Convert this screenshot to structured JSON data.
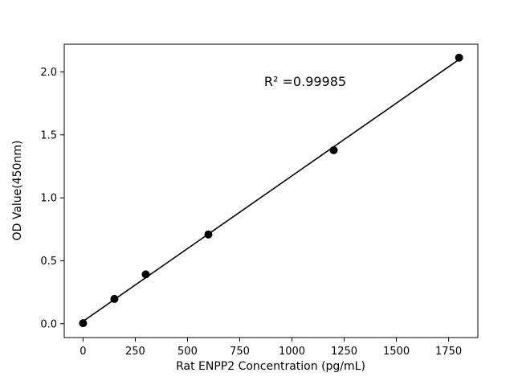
{
  "page": {
    "background_color": "#ffffff"
  },
  "chart_data": {
    "type": "scatter",
    "title": "",
    "xlabel": "Rat ENPP2 Concentration (pg/mL)",
    "ylabel": "OD Value(450nm)",
    "x": [
      0,
      150,
      300,
      600,
      1200,
      1800
    ],
    "y": [
      0.004,
      0.197,
      0.392,
      0.709,
      1.378,
      2.113
    ],
    "fit_line": {
      "type": "linear",
      "spans_full_data_range": true
    },
    "annotation": {
      "text": "R² =0.99985"
    },
    "xlim": [
      -90,
      1890
    ],
    "ylim": [
      -0.11,
      2.22
    ],
    "xticks": [
      0,
      250,
      500,
      750,
      1000,
      1250,
      1500,
      1750
    ],
    "yticks": [
      0.0,
      0.5,
      1.0,
      1.5,
      2.0
    ],
    "grid": false,
    "legend": null,
    "marker_color": "#000000",
    "line_color": "#000000",
    "axes_color": "#000000"
  }
}
